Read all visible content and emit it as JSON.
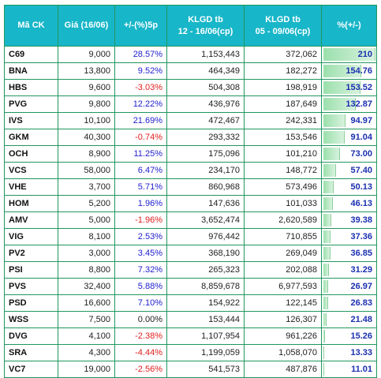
{
  "table": {
    "headers": {
      "symbol": "Mã CK",
      "price": "Giá (16/06)",
      "change": "+/-(%)5p",
      "klgd1_line1": "KLGD tb",
      "klgd1_line2": "12 - 16/06(cp)",
      "klgd2_line1": "KLGD tb",
      "klgd2_line2": "05 - 09/06(cp)",
      "pct": "%(+/-)"
    },
    "rows": [
      {
        "symbol": "C69",
        "price": "9,000",
        "change": "28.57%",
        "klgd1": "1,153,443",
        "klgd2": "372,062",
        "pct": "210",
        "pct_value": 210
      },
      {
        "symbol": "BNA",
        "price": "13,800",
        "change": "9.52%",
        "klgd1": "464,349",
        "klgd2": "182,272",
        "pct": "154.76",
        "pct_value": 154.76
      },
      {
        "symbol": "HBS",
        "price": "9,600",
        "change": "-3.03%",
        "klgd1": "504,308",
        "klgd2": "198,919",
        "pct": "153.52",
        "pct_value": 153.52
      },
      {
        "symbol": "PVG",
        "price": "9,800",
        "change": "12.22%",
        "klgd1": "436,976",
        "klgd2": "187,649",
        "pct": "132.87",
        "pct_value": 132.87
      },
      {
        "symbol": "IVS",
        "price": "10,100",
        "change": "21.69%",
        "klgd1": "472,467",
        "klgd2": "242,331",
        "pct": "94.97",
        "pct_value": 94.97
      },
      {
        "symbol": "GKM",
        "price": "40,300",
        "change": "-0.74%",
        "klgd1": "293,332",
        "klgd2": "153,546",
        "pct": "91.04",
        "pct_value": 91.04
      },
      {
        "symbol": "OCH",
        "price": "8,900",
        "change": "11.25%",
        "klgd1": "175,096",
        "klgd2": "101,210",
        "pct": "73.00",
        "pct_value": 73.0
      },
      {
        "symbol": "VCS",
        "price": "58,000",
        "change": "6.47%",
        "klgd1": "234,170",
        "klgd2": "148,772",
        "pct": "57.40",
        "pct_value": 57.4
      },
      {
        "symbol": "VHE",
        "price": "3,700",
        "change": "5.71%",
        "klgd1": "860,968",
        "klgd2": "573,496",
        "pct": "50.13",
        "pct_value": 50.13
      },
      {
        "symbol": "HOM",
        "price": "5,200",
        "change": "1.96%",
        "klgd1": "147,636",
        "klgd2": "101,033",
        "pct": "46.13",
        "pct_value": 46.13
      },
      {
        "symbol": "AMV",
        "price": "5,000",
        "change": "-1.96%",
        "klgd1": "3,652,474",
        "klgd2": "2,620,589",
        "pct": "39.38",
        "pct_value": 39.38
      },
      {
        "symbol": "VIG",
        "price": "8,100",
        "change": "2.53%",
        "klgd1": "976,442",
        "klgd2": "710,855",
        "pct": "37.36",
        "pct_value": 37.36
      },
      {
        "symbol": "PV2",
        "price": "3,000",
        "change": "3.45%",
        "klgd1": "368,190",
        "klgd2": "269,049",
        "pct": "36.85",
        "pct_value": 36.85
      },
      {
        "symbol": "PSI",
        "price": "8,800",
        "change": "7.32%",
        "klgd1": "265,323",
        "klgd2": "202,088",
        "pct": "31.29",
        "pct_value": 31.29
      },
      {
        "symbol": "PVS",
        "price": "32,400",
        "change": "5.88%",
        "klgd1": "8,859,678",
        "klgd2": "6,977,593",
        "pct": "26.97",
        "pct_value": 26.97
      },
      {
        "symbol": "PSD",
        "price": "16,600",
        "change": "7.10%",
        "klgd1": "154,922",
        "klgd2": "122,145",
        "pct": "26.83",
        "pct_value": 26.83
      },
      {
        "symbol": "WSS",
        "price": "7,500",
        "change": "0.00%",
        "klgd1": "153,444",
        "klgd2": "126,307",
        "pct": "21.48",
        "pct_value": 21.48
      },
      {
        "symbol": "DVG",
        "price": "4,100",
        "change": "-2.38%",
        "klgd1": "1,107,954",
        "klgd2": "961,226",
        "pct": "15.26",
        "pct_value": 15.26
      },
      {
        "symbol": "SRA",
        "price": "4,300",
        "change": "-4.44%",
        "klgd1": "1,199,059",
        "klgd2": "1,058,070",
        "pct": "13.33",
        "pct_value": 13.33
      },
      {
        "symbol": "VC7",
        "price": "19,000",
        "change": "-2.56%",
        "klgd1": "541,573",
        "klgd2": "487,876",
        "pct": "11.01",
        "pct_value": 11.01
      }
    ]
  },
  "colors": {
    "header_bg": "#18b6c9",
    "grid": "#21965f",
    "positive": "#2020d0",
    "negative": "#e02020",
    "bar": "#9be0ac"
  }
}
